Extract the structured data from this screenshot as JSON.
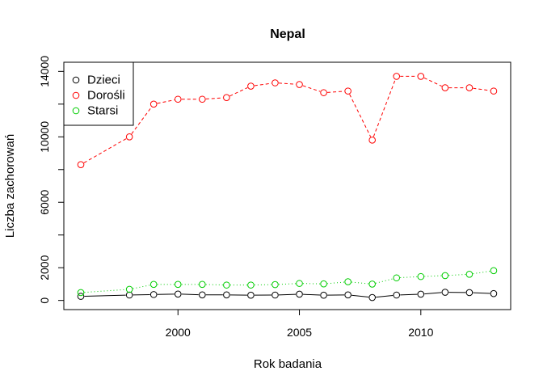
{
  "chart_data": {
    "type": "line",
    "title": "Nepal",
    "xlabel": "Rok badania",
    "ylabel": "Liczba zachorowań",
    "xlim": [
      1995.3,
      2013.7
    ],
    "ylim": [
      -560,
      14560
    ],
    "x_ticks": [
      2000,
      2005,
      2010
    ],
    "x_tick_labels": [
      "2000",
      "2005",
      "2010"
    ],
    "y_ticks": [
      0,
      2000,
      4000,
      6000,
      8000,
      10000,
      12000,
      14000
    ],
    "y_tick_labels": [
      "0",
      "2000",
      "",
      "6000",
      "",
      "10000",
      "",
      "14000"
    ],
    "grid": false,
    "legend_position": "top-left",
    "x": [
      1996,
      1998,
      1999,
      2000,
      2001,
      2002,
      2003,
      2004,
      2005,
      2006,
      2007,
      2008,
      2009,
      2010,
      2011,
      2012,
      2013
    ],
    "series": [
      {
        "name": "Dzieci",
        "color": "#000000",
        "line_style": "solid",
        "values": [
          250,
          330,
          360,
          390,
          340,
          340,
          320,
          330,
          380,
          320,
          340,
          180,
          330,
          380,
          500,
          480,
          420
        ]
      },
      {
        "name": "Dorośli",
        "color": "#ff0000",
        "line_style": "dashed",
        "values": [
          8300,
          10000,
          12000,
          12300,
          12300,
          12400,
          13100,
          13300,
          13200,
          12700,
          12800,
          9800,
          13700,
          13700,
          13000,
          13000,
          12800
        ]
      },
      {
        "name": "Starsi",
        "color": "#00cd00",
        "line_style": "dotted",
        "values": [
          480,
          680,
          980,
          980,
          980,
          940,
          940,
          970,
          1040,
          1010,
          1140,
          1000,
          1380,
          1460,
          1520,
          1600,
          1820
        ]
      }
    ]
  }
}
